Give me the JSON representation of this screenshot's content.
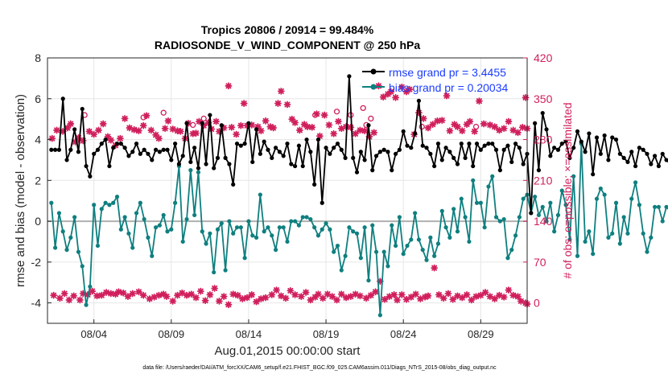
{
  "chart_data": {
    "type": "line",
    "title": "Tropics 20806 / 20914 = 99.484%",
    "subtitle": "RADIOSONDE_V_WIND_COMPONENT @ 250 hPa",
    "xlabel": "Aug.01,2015 00:00:00 start",
    "ylabel_left": "rmse and bias (model - observation)",
    "ylabel_right": "# of obs: o=possible; ×=assimilated",
    "footer": "data file: /Users/raeder/DAI/ATM_forcXX/CAM6_setup/f.e21.FHIST_BGC.f09_025.CAM6assim.011/Diags_NTrS_2015-08/obs_diag_output.nc",
    "xlim": [
      1.0,
      32.0
    ],
    "ylim_left": [
      -5,
      8
    ],
    "ylim_right": [
      -35,
      420
    ],
    "x_ticks": [
      4,
      9,
      14,
      19,
      24,
      29
    ],
    "x_ticklabels": [
      "08/04",
      "08/09",
      "08/14",
      "08/19",
      "08/24",
      "08/29"
    ],
    "y_left_ticks": [
      -4,
      -2,
      0,
      2,
      4,
      6,
      8
    ],
    "y_right_ticks": [
      0,
      70,
      140,
      210,
      280,
      350,
      420
    ],
    "colors": {
      "rmse": "#000000",
      "bias": "#0f7f7f",
      "obs": "#d01f5c",
      "zero": "#b0b0b0",
      "legend_text": "#1a3cff"
    },
    "series": [
      {
        "name": "rmse grand pr = 3.4455",
        "x0": 1.25,
        "dx": 0.25,
        "values": [
          3.5,
          3.5,
          3.5,
          6.0,
          3.0,
          3.5,
          4.5,
          3.4,
          5.5,
          2.7,
          2.2,
          3.3,
          3.5,
          3.8,
          4.0,
          2.7,
          3.6,
          3.8,
          3.8,
          3.6,
          3.2,
          3.4,
          3.8,
          3.3,
          3.5,
          3.3,
          3.0,
          3.5,
          3.4,
          3.5,
          3.5,
          3.0,
          3.8,
          2.8,
          3.2,
          4.8,
          2.9,
          3.6,
          2.6,
          4.8,
          2.8,
          5.2,
          2.6,
          3.1,
          4.7,
          3.1,
          2.8,
          1.8,
          3.8,
          3.7,
          3.8,
          4.8,
          2.9,
          4.5,
          3.3,
          3.9,
          3.5,
          3.1,
          3.6,
          3.4,
          3.2,
          3.8,
          2.8,
          2.7,
          3.7,
          2.7,
          4.0,
          3.4,
          1.8,
          4.0,
          0.9,
          3.6,
          3.3,
          3.6,
          3.8,
          3.5,
          3.1,
          7.1,
          3.1,
          2.4,
          3.4,
          3.0,
          4.7,
          2.5,
          3.2,
          3.4,
          3.5,
          3.4,
          2.5,
          3.3,
          3.5,
          4.4,
          3.7,
          3.6,
          4.3,
          5.9,
          3.7,
          3.6,
          3.3,
          2.7,
          3.8,
          3.0,
          3.6,
          3.4,
          3.1,
          2.8,
          3.8,
          3.1,
          3.8,
          2.7,
          3.8,
          3.5,
          3.7,
          3.8,
          3.8,
          3.5,
          2.5,
          3.5,
          3.7,
          2.9,
          3.8,
          3.6,
          2.8,
          3.3,
          0.4,
          4.8,
          2.5,
          5.3,
          4.5,
          3.2,
          3.6,
          3.5,
          3.8,
          3.9,
          3.1,
          3.6,
          4.4,
          3.9,
          3.4,
          4.3,
          2.3,
          4.1,
          3.3,
          4.2,
          3.0,
          4.1,
          4.0,
          3.3,
          3.1,
          2.9,
          3.4,
          2.7,
          3.6,
          3.5,
          3.3,
          2.8,
          3.2,
          2.7,
          3.3,
          3.0,
          2.8,
          2.7
        ]
      },
      {
        "name": "bias grand pr = 0.20034",
        "x0": 1.25,
        "dx": 0.25,
        "values": [
          0.9,
          -1.3,
          0.4,
          -0.5,
          -1.4,
          -0.8,
          0.2,
          -1.5,
          -2.2,
          -4.1,
          -3.2,
          0.8,
          -1.2,
          0.6,
          0.9,
          0.8,
          0.9,
          1.2,
          -0.4,
          0.2,
          -0.6,
          -1.3,
          0.4,
          0.9,
          0.1,
          -0.8,
          -1.7,
          -0.3,
          -0.2,
          0.3,
          -0.5,
          -0.4,
          0.9,
          2.7,
          -1.0,
          0.1,
          2.5,
          0.3,
          2.4,
          -0.5,
          -1.1,
          -0.6,
          -2.5,
          -0.4,
          -0.1,
          -2.4,
          0.0,
          -0.6,
          -0.3,
          -0.3,
          -1.8,
          0.0,
          -0.7,
          -0.8,
          1.3,
          -0.5,
          -0.3,
          -0.7,
          -1.4,
          -0.3,
          -0.3,
          -1.0,
          0.0,
          0.0,
          -0.2,
          0.2,
          0.2,
          0.1,
          -0.3,
          -0.7,
          -0.4,
          -0.1,
          -0.4,
          -1.5,
          -1.2,
          -2.4,
          -1.7,
          -0.3,
          -0.5,
          -0.6,
          -1.8,
          -0.3,
          -2.9,
          -0.2,
          -1.5,
          -4.6,
          -1.5,
          -2.2,
          -0.2,
          -1.2,
          0.2,
          -1.6,
          -1.2,
          -0.9,
          0.4,
          -0.9,
          -1.4,
          -1.9,
          -0.8,
          -1.7,
          -1.1,
          0.5,
          -0.3,
          -0.8,
          0.6,
          -0.5,
          1.1,
          0.2,
          -1.0,
          2.0,
          0.9,
          0.9,
          -0.3,
          1.7,
          2.2,
          0.2,
          0.0,
          0.1,
          -1.8,
          -1.4,
          -0.7,
          0.2,
          1.1,
          1.3,
          0.4,
          1.2,
          0.3,
          0.7,
          0.0,
          0.9,
          -0.5,
          0.3,
          1.5,
          0.8,
          -0.9,
          2.2,
          -1.7,
          3.8,
          -1.0,
          -0.5,
          -1.6,
          1.1,
          1.6,
          1.3,
          -0.8,
          -0.6,
          0.9,
          -1.1,
          0.2,
          -0.6,
          1.1,
          1.9,
          0.8,
          -0.6,
          -1.5,
          -0.8,
          0.7,
          0.7,
          0.0,
          0.7,
          0.5,
          0.4,
          -0.4
        ]
      },
      {
        "name": "possible",
        "points": [
          [
            3.4,
            322
          ],
          [
            18.3,
            322
          ],
          [
            19.7,
            328
          ],
          [
            20.6,
            322
          ],
          [
            21.4,
            334
          ],
          [
            21.9,
            316
          ],
          [
            7.2,
            318
          ],
          [
            8.5,
            326
          ],
          [
            11.1,
            316
          ],
          [
            21.6,
            305
          ],
          [
            10.4,
            305
          ],
          [
            28.7,
            302
          ],
          [
            25.2,
            302
          ]
        ]
      },
      {
        "name": "assimilated",
        "points": [
          [
            1.3,
            282
          ],
          [
            1.6,
            296
          ],
          [
            2.0,
            294
          ],
          [
            2.3,
            300
          ],
          [
            2.5,
            307
          ],
          [
            2.8,
            276
          ],
          [
            3.0,
            283
          ],
          [
            3.3,
            278
          ],
          [
            3.7,
            294
          ],
          [
            4.0,
            289
          ],
          [
            4.3,
            296
          ],
          [
            4.6,
            307
          ],
          [
            4.9,
            285
          ],
          [
            5.1,
            279
          ],
          [
            5.4,
            270
          ],
          [
            5.7,
            282
          ],
          [
            6.0,
            316
          ],
          [
            6.3,
            300
          ],
          [
            6.6,
            297
          ],
          [
            6.9,
            295
          ],
          [
            7.2,
            304
          ],
          [
            7.4,
            321
          ],
          [
            7.7,
            296
          ],
          [
            8.0,
            288
          ],
          [
            8.2,
            282
          ],
          [
            8.6,
            299
          ],
          [
            8.8,
            312
          ],
          [
            9.1,
            298
          ],
          [
            9.4,
            295
          ],
          [
            9.6,
            294
          ],
          [
            9.9,
            282
          ],
          [
            10.1,
            308
          ],
          [
            10.4,
            290
          ],
          [
            10.6,
            291
          ],
          [
            10.8,
            311
          ],
          [
            11.1,
            304
          ],
          [
            11.4,
            309
          ],
          [
            11.6,
            298
          ],
          [
            11.9,
            311
          ],
          [
            12.1,
            294
          ],
          [
            12.4,
            300
          ],
          [
            12.7,
            372
          ],
          [
            12.9,
            301
          ],
          [
            13.2,
            289
          ],
          [
            13.5,
            304
          ],
          [
            13.7,
            342
          ],
          [
            13.9,
            304
          ],
          [
            14.2,
            305
          ],
          [
            14.6,
            302
          ],
          [
            14.8,
            295
          ],
          [
            15.1,
            312
          ],
          [
            15.4,
            302
          ],
          [
            15.6,
            300
          ],
          [
            15.9,
            342
          ],
          [
            16.1,
            363
          ],
          [
            16.5,
            340
          ],
          [
            16.8,
            315
          ],
          [
            17.0,
            309
          ],
          [
            17.3,
            296
          ],
          [
            17.6,
            306
          ],
          [
            17.8,
            302
          ],
          [
            18.1,
            301
          ],
          [
            18.4,
            324
          ],
          [
            18.6,
            286
          ],
          [
            18.9,
            322
          ],
          [
            19.2,
            305
          ],
          [
            19.5,
            290
          ],
          [
            19.8,
            311
          ],
          [
            20.0,
            299
          ],
          [
            20.3,
            302
          ],
          [
            20.6,
            301
          ],
          [
            20.9,
            290
          ],
          [
            21.2,
            296
          ],
          [
            21.5,
            295
          ],
          [
            21.8,
            285
          ],
          [
            22.1,
            292
          ],
          [
            22.4,
            372
          ],
          [
            22.7,
            353
          ],
          [
            23.0,
            358
          ],
          [
            23.2,
            362
          ],
          [
            23.5,
            352
          ],
          [
            23.9,
            370
          ],
          [
            24.2,
            362
          ],
          [
            24.4,
            366
          ],
          [
            24.7,
            289
          ],
          [
            25.0,
            326
          ],
          [
            25.3,
            316
          ],
          [
            25.6,
            300
          ],
          [
            25.9,
            306
          ],
          [
            26.2,
            312
          ],
          [
            26.5,
            313
          ],
          [
            26.8,
            355
          ],
          [
            27.0,
            295
          ],
          [
            27.3,
            306
          ],
          [
            27.5,
            302
          ],
          [
            27.8,
            295
          ],
          [
            28.1,
            306
          ],
          [
            28.3,
            311
          ],
          [
            28.6,
            294
          ],
          [
            28.9,
            346
          ],
          [
            29.2,
            307
          ],
          [
            29.6,
            305
          ],
          [
            29.9,
            302
          ],
          [
            30.2,
            296
          ],
          [
            30.5,
            299
          ],
          [
            30.8,
            311
          ],
          [
            31.1,
            296
          ],
          [
            31.4,
            292
          ],
          [
            31.7,
            301
          ],
          [
            31.9,
            352
          ],
          [
            32.0,
            299
          ],
          [
            1.4,
            13
          ],
          [
            1.8,
            8
          ],
          [
            2.1,
            16
          ],
          [
            2.4,
            5
          ],
          [
            2.7,
            12
          ],
          [
            3.1,
            5
          ],
          [
            3.3,
            16
          ],
          [
            3.6,
            14
          ],
          [
            3.9,
            20
          ],
          [
            4.2,
            12
          ],
          [
            4.5,
            13
          ],
          [
            4.8,
            18
          ],
          [
            5.1,
            16
          ],
          [
            5.4,
            15
          ],
          [
            5.6,
            19
          ],
          [
            5.9,
            17
          ],
          [
            6.2,
            11
          ],
          [
            6.5,
            16
          ],
          [
            6.9,
            19
          ],
          [
            7.2,
            13
          ],
          [
            7.6,
            7
          ],
          [
            7.9,
            10
          ],
          [
            8.2,
            13
          ],
          [
            8.5,
            15
          ],
          [
            8.7,
            11
          ],
          [
            9.1,
            3
          ],
          [
            9.4,
            13
          ],
          [
            9.7,
            17
          ],
          [
            10.0,
            13
          ],
          [
            10.3,
            15
          ],
          [
            10.6,
            9
          ],
          [
            10.9,
            20
          ],
          [
            11.2,
            4
          ],
          [
            11.5,
            14
          ],
          [
            11.8,
            25
          ],
          [
            12.1,
            3
          ],
          [
            12.4,
            11
          ],
          [
            12.7,
            -3
          ],
          [
            13.0,
            15
          ],
          [
            13.3,
            13
          ],
          [
            13.6,
            7
          ],
          [
            13.9,
            9
          ],
          [
            14.2,
            14
          ],
          [
            14.5,
            2
          ],
          [
            14.8,
            7
          ],
          [
            15.1,
            9
          ],
          [
            15.5,
            14
          ],
          [
            15.8,
            22
          ],
          [
            16.1,
            12
          ],
          [
            16.4,
            8
          ],
          [
            16.7,
            21
          ],
          [
            17.0,
            14
          ],
          [
            17.4,
            11
          ],
          [
            17.7,
            18
          ],
          [
            18.0,
            5
          ],
          [
            18.3,
            10
          ],
          [
            18.5,
            15
          ],
          [
            18.8,
            8
          ],
          [
            19.1,
            15
          ],
          [
            19.4,
            11
          ],
          [
            19.7,
            5
          ],
          [
            20.0,
            15
          ],
          [
            20.3,
            9
          ],
          [
            20.6,
            11
          ],
          [
            20.9,
            15
          ],
          [
            21.2,
            12
          ],
          [
            21.6,
            8
          ],
          [
            21.9,
            13
          ],
          [
            22.2,
            19
          ],
          [
            22.5,
            37
          ],
          [
            22.8,
            6
          ],
          [
            23.1,
            11
          ],
          [
            23.4,
            14
          ],
          [
            23.6,
            5
          ],
          [
            23.9,
            14
          ],
          [
            24.2,
            6
          ],
          [
            24.5,
            10
          ],
          [
            24.8,
            15
          ],
          [
            25.1,
            7
          ],
          [
            25.4,
            10
          ],
          [
            25.6,
            12
          ],
          [
            26.0,
            60
          ],
          [
            26.3,
            14
          ],
          [
            26.6,
            8
          ],
          [
            26.9,
            16
          ],
          [
            27.2,
            6
          ],
          [
            27.5,
            12
          ],
          [
            27.8,
            9
          ],
          [
            28.1,
            14
          ],
          [
            28.4,
            5
          ],
          [
            28.7,
            11
          ],
          [
            29.0,
            13
          ],
          [
            29.3,
            18
          ],
          [
            29.6,
            11
          ],
          [
            29.9,
            7
          ],
          [
            30.2,
            13
          ],
          [
            30.5,
            10
          ],
          [
            30.8,
            22
          ],
          [
            31.1,
            13
          ],
          [
            31.4,
            11
          ],
          [
            31.6,
            3
          ],
          [
            31.9,
            0
          ],
          [
            32.0,
            -2
          ]
        ]
      }
    ]
  }
}
